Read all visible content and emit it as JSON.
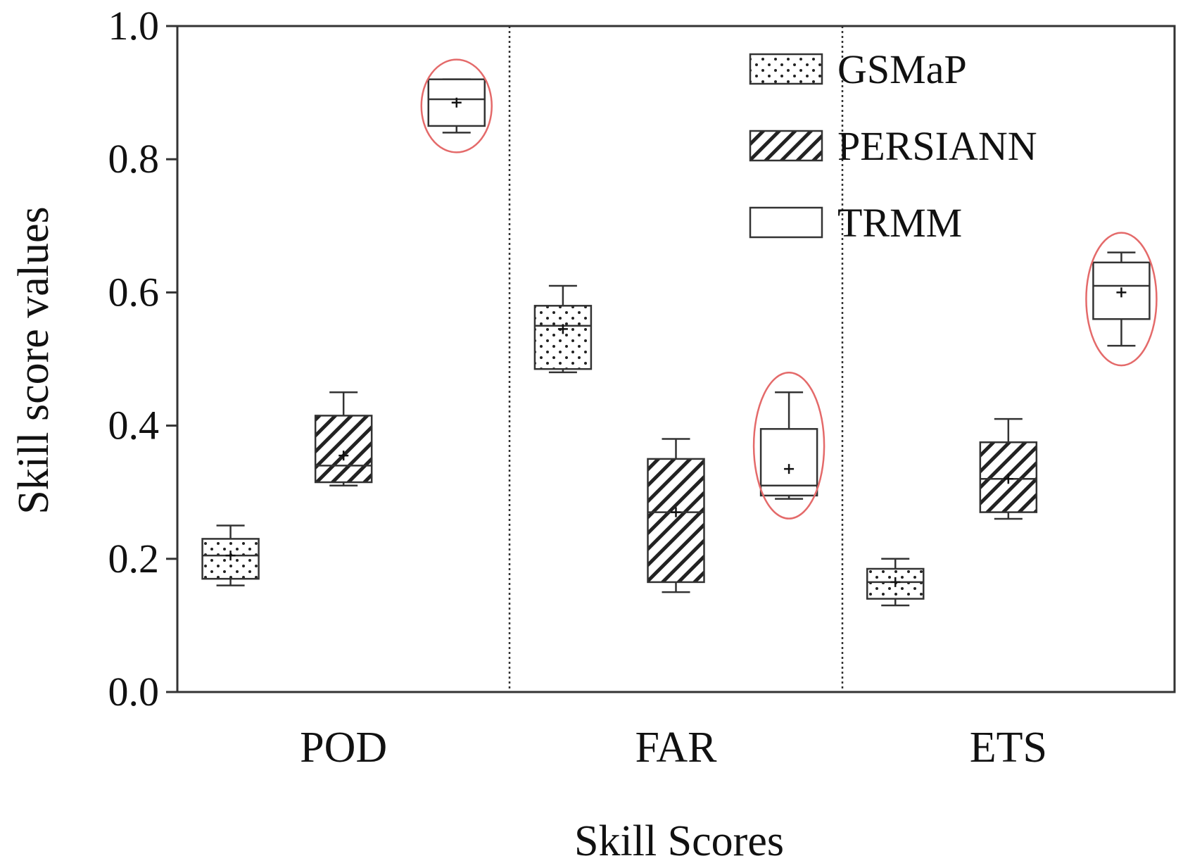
{
  "chart_data": {
    "type": "box",
    "title": "",
    "xlabel": "Skill Scores",
    "ylabel": "Skill score values",
    "ylim": [
      0.0,
      1.0
    ],
    "yticks": [
      "0.0",
      "0.2",
      "0.4",
      "0.6",
      "0.8",
      "1.0"
    ],
    "categories": [
      "POD",
      "FAR",
      "ETS"
    ],
    "legend_position": "top-right",
    "grid": false,
    "category_separators": "dotted vertical lines",
    "highlight_color": "#e46a6a",
    "series": [
      {
        "name": "GSMaP",
        "pattern": "dots",
        "boxes": [
          {
            "category": "POD",
            "min": 0.16,
            "q1": 0.17,
            "median": 0.205,
            "q3": 0.23,
            "max": 0.25,
            "mean": 0.205,
            "highlighted": false
          },
          {
            "category": "FAR",
            "min": 0.48,
            "q1": 0.485,
            "median": 0.55,
            "q3": 0.58,
            "max": 0.61,
            "mean": 0.545,
            "highlighted": false
          },
          {
            "category": "ETS",
            "min": 0.13,
            "q1": 0.14,
            "median": 0.165,
            "q3": 0.185,
            "max": 0.2,
            "mean": 0.165,
            "highlighted": false
          }
        ]
      },
      {
        "name": "PERSIANN",
        "pattern": "hatch",
        "boxes": [
          {
            "category": "POD",
            "min": 0.31,
            "q1": 0.315,
            "median": 0.34,
            "q3": 0.415,
            "max": 0.45,
            "mean": 0.355,
            "highlighted": false
          },
          {
            "category": "FAR",
            "min": 0.15,
            "q1": 0.165,
            "median": 0.27,
            "q3": 0.35,
            "max": 0.38,
            "mean": 0.27,
            "highlighted": false
          },
          {
            "category": "ETS",
            "min": 0.26,
            "q1": 0.27,
            "median": 0.32,
            "q3": 0.375,
            "max": 0.41,
            "mean": 0.32,
            "highlighted": false
          }
        ]
      },
      {
        "name": "TRMM",
        "pattern": "none",
        "boxes": [
          {
            "category": "POD",
            "min": 0.84,
            "q1": 0.85,
            "median": 0.89,
            "q3": 0.92,
            "max": 0.92,
            "mean": 0.885,
            "highlighted": true
          },
          {
            "category": "FAR",
            "min": 0.29,
            "q1": 0.295,
            "median": 0.31,
            "q3": 0.395,
            "max": 0.45,
            "mean": 0.335,
            "highlighted": true
          },
          {
            "category": "ETS",
            "min": 0.52,
            "q1": 0.56,
            "median": 0.61,
            "q3": 0.645,
            "max": 0.66,
            "mean": 0.6,
            "highlighted": true
          }
        ]
      }
    ]
  }
}
